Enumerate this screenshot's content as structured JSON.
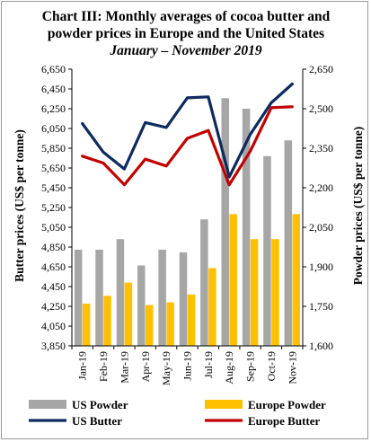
{
  "chart_data": {
    "type": "bar+line",
    "title": "Chart III: Monthly averages of cocoa butter and powder prices in Europe and the United States",
    "title_lines": [
      "Chart III: Monthly averages of cocoa butter and",
      "powder prices in Europe and the United States"
    ],
    "subtitle": "January – November 2019",
    "categories": [
      "Jan-19",
      "Feb-19",
      "Mar-19",
      "Apr-19",
      "May-19",
      "Jun-19",
      "Jul-19",
      "Aug-19",
      "Sep-19",
      "Oct-19",
      "Nov-19"
    ],
    "y_left": {
      "label": "Butter prices (US$ per tonne)",
      "range": [
        3850,
        6650
      ],
      "ticks": [
        "3,850",
        "4,050",
        "4,250",
        "4,450",
        "4,650",
        "4,850",
        "5,050",
        "5,250",
        "5,450",
        "5,650",
        "5,850",
        "6,050",
        "6,250",
        "6,450",
        "6,650"
      ],
      "tick_values": [
        3850,
        4050,
        4250,
        4450,
        4650,
        4850,
        5050,
        5250,
        5450,
        5650,
        5850,
        6050,
        6250,
        6450,
        6650
      ]
    },
    "y_right": {
      "label": "Powder prices (US$ per tonne)",
      "range": [
        1600,
        2650
      ],
      "ticks": [
        "1,600",
        "1,750",
        "1,900",
        "2,050",
        "2,200",
        "2,350",
        "2,500",
        "2,650"
      ],
      "tick_values": [
        1600,
        1750,
        1900,
        2050,
        2200,
        2350,
        2500,
        2650
      ]
    },
    "series": [
      {
        "name": "US Powder",
        "kind": "bar",
        "axis": "right",
        "color": "#a6a6a6",
        "values": [
          1965,
          1965,
          2005,
          1905,
          1965,
          1955,
          2080,
          2540,
          2500,
          2320,
          2380
        ]
      },
      {
        "name": "Europe Powder",
        "kind": "bar",
        "axis": "right",
        "color": "#ffc000",
        "values": [
          1760,
          1790,
          1840,
          1755,
          1765,
          1795,
          1895,
          2100,
          2005,
          2005,
          2100
        ]
      },
      {
        "name": "US Butter",
        "kind": "line",
        "axis": "left",
        "color": "#0e2a5e",
        "values": [
          6100,
          5810,
          5640,
          6110,
          6060,
          6360,
          6370,
          5560,
          5990,
          6310,
          6500
        ]
      },
      {
        "name": "Europe Butter",
        "kind": "line",
        "axis": "left",
        "color": "#c00000",
        "values": [
          5770,
          5700,
          5480,
          5740,
          5670,
          5950,
          6030,
          5480,
          5820,
          6260,
          6270
        ]
      }
    ],
    "legend_position": "bottom",
    "grid": false
  }
}
